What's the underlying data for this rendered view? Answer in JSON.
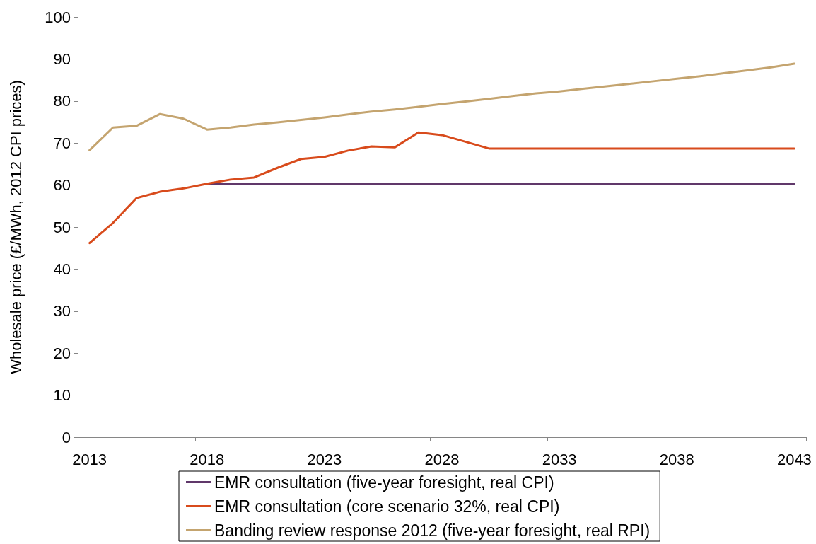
{
  "chart_data": {
    "type": "line",
    "ylabel": "Wholesale price (£/MWh, 2012 CPI prices)",
    "categories": [
      "2013",
      null,
      null,
      null,
      null,
      "2018",
      null,
      null,
      null,
      null,
      "2023",
      null,
      null,
      null,
      null,
      "2028",
      null,
      null,
      null,
      null,
      "2033",
      null,
      null,
      null,
      null,
      "2038",
      null,
      null,
      null,
      null,
      "2043"
    ],
    "series": [
      {
        "name": "EMR consultation (five-year foresight, real CPI)",
        "color": "#60386a",
        "values": [
          null,
          null,
          null,
          null,
          null,
          60.3,
          60.3,
          60.3,
          60.3,
          60.3,
          60.3,
          60.3,
          60.3,
          60.3,
          60.3,
          60.3,
          60.3,
          60.3,
          60.3,
          60.3,
          60.3,
          60.3,
          60.3,
          60.3,
          60.3,
          60.3,
          60.3,
          60.3,
          60.3,
          60.3,
          60.3
        ]
      },
      {
        "name": "EMR consultation (core scenario 32%, real CPI)",
        "color": "#d84b1c",
        "values": [
          46.2,
          51.0,
          56.9,
          58.4,
          59.2,
          60.3,
          61.3,
          61.8,
          64.1,
          66.2,
          66.7,
          68.2,
          69.2,
          69.0,
          72.5,
          71.9,
          70.3,
          68.7,
          68.7,
          68.7,
          68.7,
          68.7,
          68.7,
          68.7,
          68.7,
          68.7,
          68.7,
          68.7,
          68.7,
          68.7,
          68.7
        ]
      },
      {
        "name": "Banding review response 2012 (five-year foresight, real RPI)",
        "color": "#c4a46f",
        "values": [
          68.3,
          73.7,
          74.1,
          76.9,
          75.8,
          73.2,
          73.7,
          74.4,
          74.9,
          75.5,
          76.1,
          76.8,
          77.5,
          78.0,
          78.6,
          79.3,
          79.9,
          80.5,
          81.2,
          81.8,
          82.3,
          82.9,
          83.5,
          84.1,
          84.7,
          85.3,
          85.9,
          86.6,
          87.3,
          88.0,
          88.9
        ]
      }
    ],
    "ylim": [
      0,
      100
    ],
    "yticks": [
      0,
      10,
      20,
      30,
      40,
      50,
      60,
      70,
      80,
      90,
      100
    ],
    "grid": false,
    "legend": "bottom",
    "marker": "none",
    "line_style": "solid"
  }
}
